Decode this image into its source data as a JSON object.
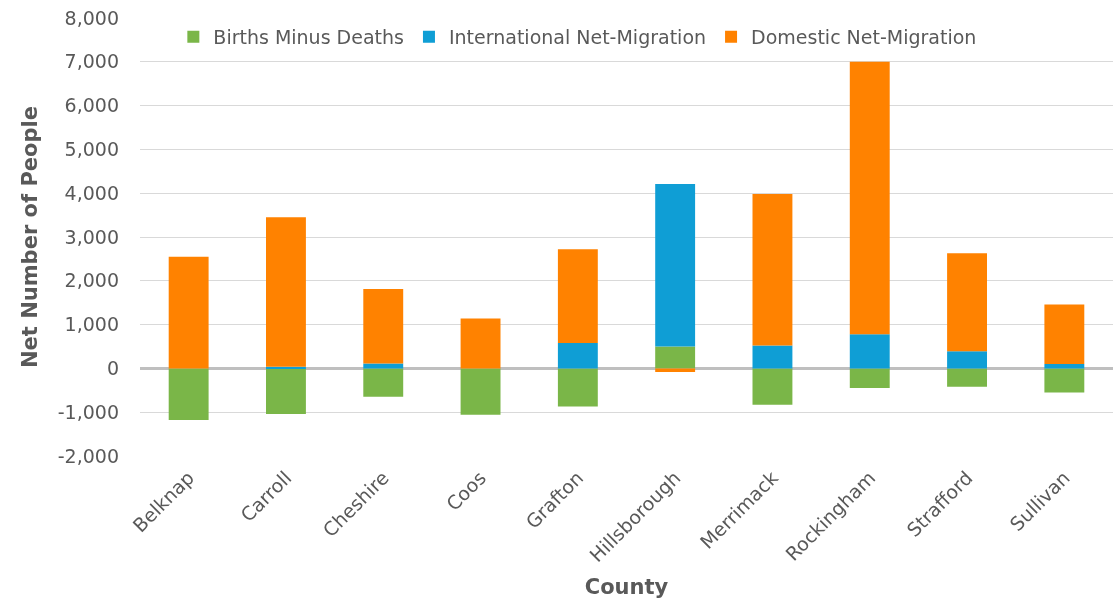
{
  "chart_data": {
    "type": "bar",
    "stacked": true,
    "xlabel": "County",
    "ylabel": "Net Number of People",
    "categories": [
      "Belknap",
      "Carroll",
      "Cheshire",
      "Coos",
      "Grafton",
      "Hillsborough",
      "Merrimack",
      "Rockingham",
      "Strafford",
      "Sullivan"
    ],
    "series": [
      {
        "name": "Births Minus Deaths",
        "color": "#7ab648",
        "values": [
          -1180,
          -1040,
          -650,
          -1060,
          -870,
          500,
          -830,
          -450,
          -420,
          -550
        ]
      },
      {
        "name": "International Net-Migration",
        "color": "#0f9ed5",
        "values": [
          0,
          40,
          110,
          0,
          580,
          3710,
          520,
          780,
          390,
          100
        ]
      },
      {
        "name": "Domestic Net-Migration",
        "color": "#ff8200",
        "values": [
          2550,
          3410,
          1700,
          1140,
          2140,
          -80,
          3460,
          6220,
          2240,
          1360
        ]
      }
    ],
    "ylim": [
      -2000,
      8000
    ],
    "yticks": [
      {
        "value": -2000,
        "label": "-2,000"
      },
      {
        "value": -1000,
        "label": "-1,000"
      },
      0,
      {
        "value": 1000,
        "label": "1,000"
      },
      {
        "value": 2000,
        "label": "2,000"
      },
      {
        "value": 3000,
        "label": "3,000"
      },
      {
        "value": 4000,
        "label": "4,000"
      },
      {
        "value": 5000,
        "label": "5,000"
      },
      {
        "value": 6000,
        "label": "6,000"
      },
      {
        "value": 7000,
        "label": "7,000"
      },
      {
        "value": 8000,
        "label": "8,000"
      }
    ],
    "grid": "y",
    "legend": "top"
  }
}
